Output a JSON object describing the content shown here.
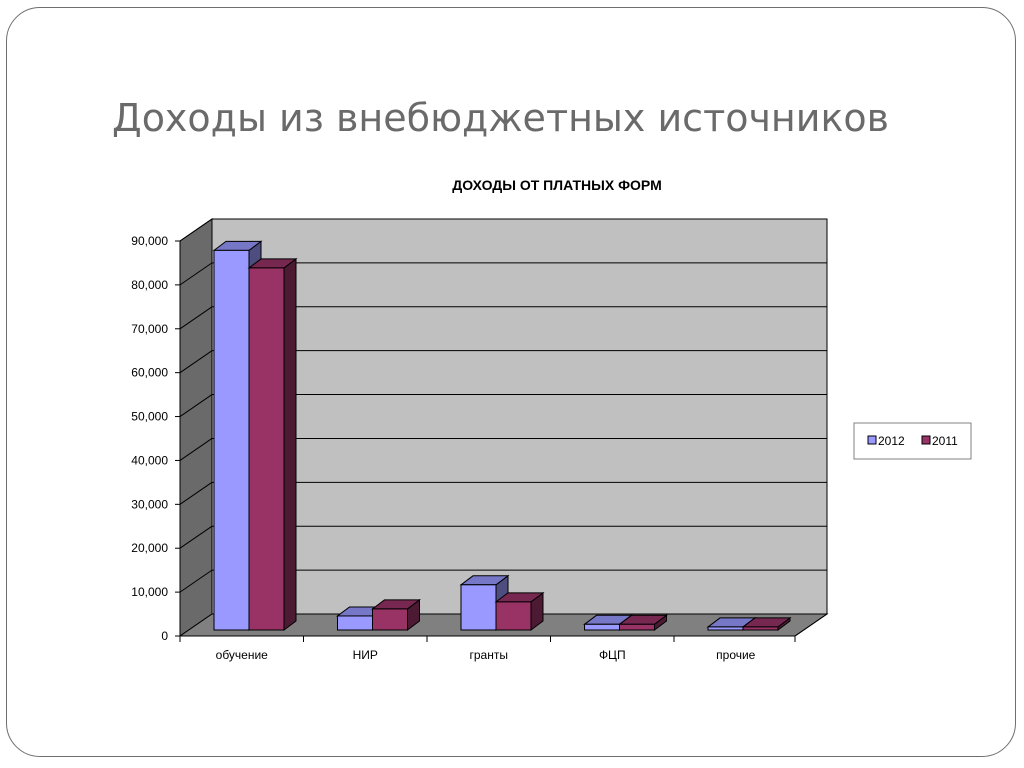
{
  "slide": {
    "title": "Доходы из внебюджетных источников"
  },
  "chart_data": {
    "type": "bar",
    "title": "ДОХОДЫ ОТ ПЛАТНЫХ ФОРМ",
    "categories": [
      "обучение",
      "НИР",
      "гранты",
      "ФЦП",
      "прочие"
    ],
    "series": [
      {
        "name": "2012",
        "values": [
          86500,
          3200,
          10300,
          1300,
          700
        ],
        "color": "#9999ff"
      },
      {
        "name": "2011",
        "values": [
          82500,
          4800,
          6400,
          1300,
          700
        ],
        "color": "#993366"
      }
    ],
    "y_ticks": [
      "0",
      "10,000",
      "20,000",
      "30,000",
      "40,000",
      "50,000",
      "60,000",
      "70,000",
      "80,000",
      "90,000"
    ],
    "ylim": [
      0,
      90000
    ],
    "grid": true,
    "legend_position": "right",
    "wall_color": "#c0c0c0",
    "floor_color": "#808080"
  }
}
